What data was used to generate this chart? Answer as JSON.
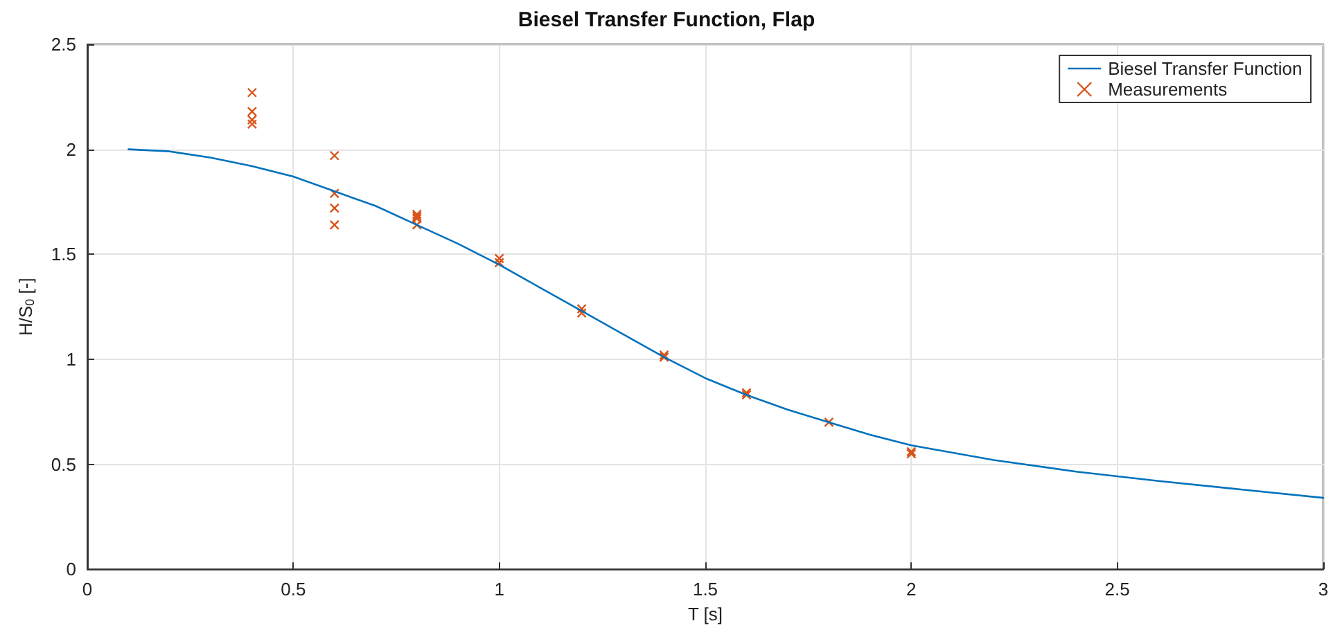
{
  "chart_data": {
    "type": "line",
    "title": "Biesel Transfer Function, Flap",
    "xlabel": "T [s]",
    "ylabel": "H/S$_{0}$ [-]",
    "xlim": [
      0,
      3
    ],
    "xticks": [
      0,
      0.5,
      1,
      1.5,
      2,
      2.5,
      3
    ],
    "ylim": [
      0,
      2.5
    ],
    "yticks": [
      0,
      0.5,
      1,
      1.5,
      2,
      2.5
    ],
    "grid": true,
    "legend": "top right",
    "series": [
      {
        "name": "Biesel Transfer Function",
        "color": "#0072bd",
        "marker": "none",
        "x": [
          0.1,
          0.2,
          0.3,
          0.4,
          0.5,
          0.6,
          0.7,
          0.8,
          0.9,
          1.0,
          1.1,
          1.2,
          1.3,
          1.4,
          1.5,
          1.6,
          1.7,
          1.8,
          1.9,
          2.0,
          2.2,
          2.4,
          2.6,
          2.8,
          3.0
        ],
        "values": [
          2.0,
          1.99,
          1.96,
          1.92,
          1.87,
          1.8,
          1.73,
          1.64,
          1.55,
          1.45,
          1.34,
          1.23,
          1.12,
          1.01,
          0.91,
          0.83,
          0.76,
          0.7,
          0.64,
          0.59,
          0.52,
          0.465,
          0.42,
          0.38,
          0.34
        ]
      },
      {
        "name": "Measurements",
        "type": "scatter",
        "color": "#d95319",
        "marker": "cross",
        "x": [
          0.4,
          0.4,
          0.4,
          0.4,
          0.6,
          0.6,
          0.6,
          0.6,
          0.8,
          0.8,
          0.8,
          0.8,
          1.0,
          1.0,
          1.2,
          1.2,
          1.4,
          1.4,
          1.6,
          1.6,
          1.8,
          2.0,
          2.0
        ],
        "values": [
          2.27,
          2.18,
          2.14,
          2.12,
          1.97,
          1.79,
          1.72,
          1.64,
          1.69,
          1.68,
          1.67,
          1.64,
          1.48,
          1.46,
          1.24,
          1.22,
          1.02,
          1.01,
          0.84,
          0.83,
          0.7,
          0.56,
          0.55
        ]
      }
    ]
  }
}
